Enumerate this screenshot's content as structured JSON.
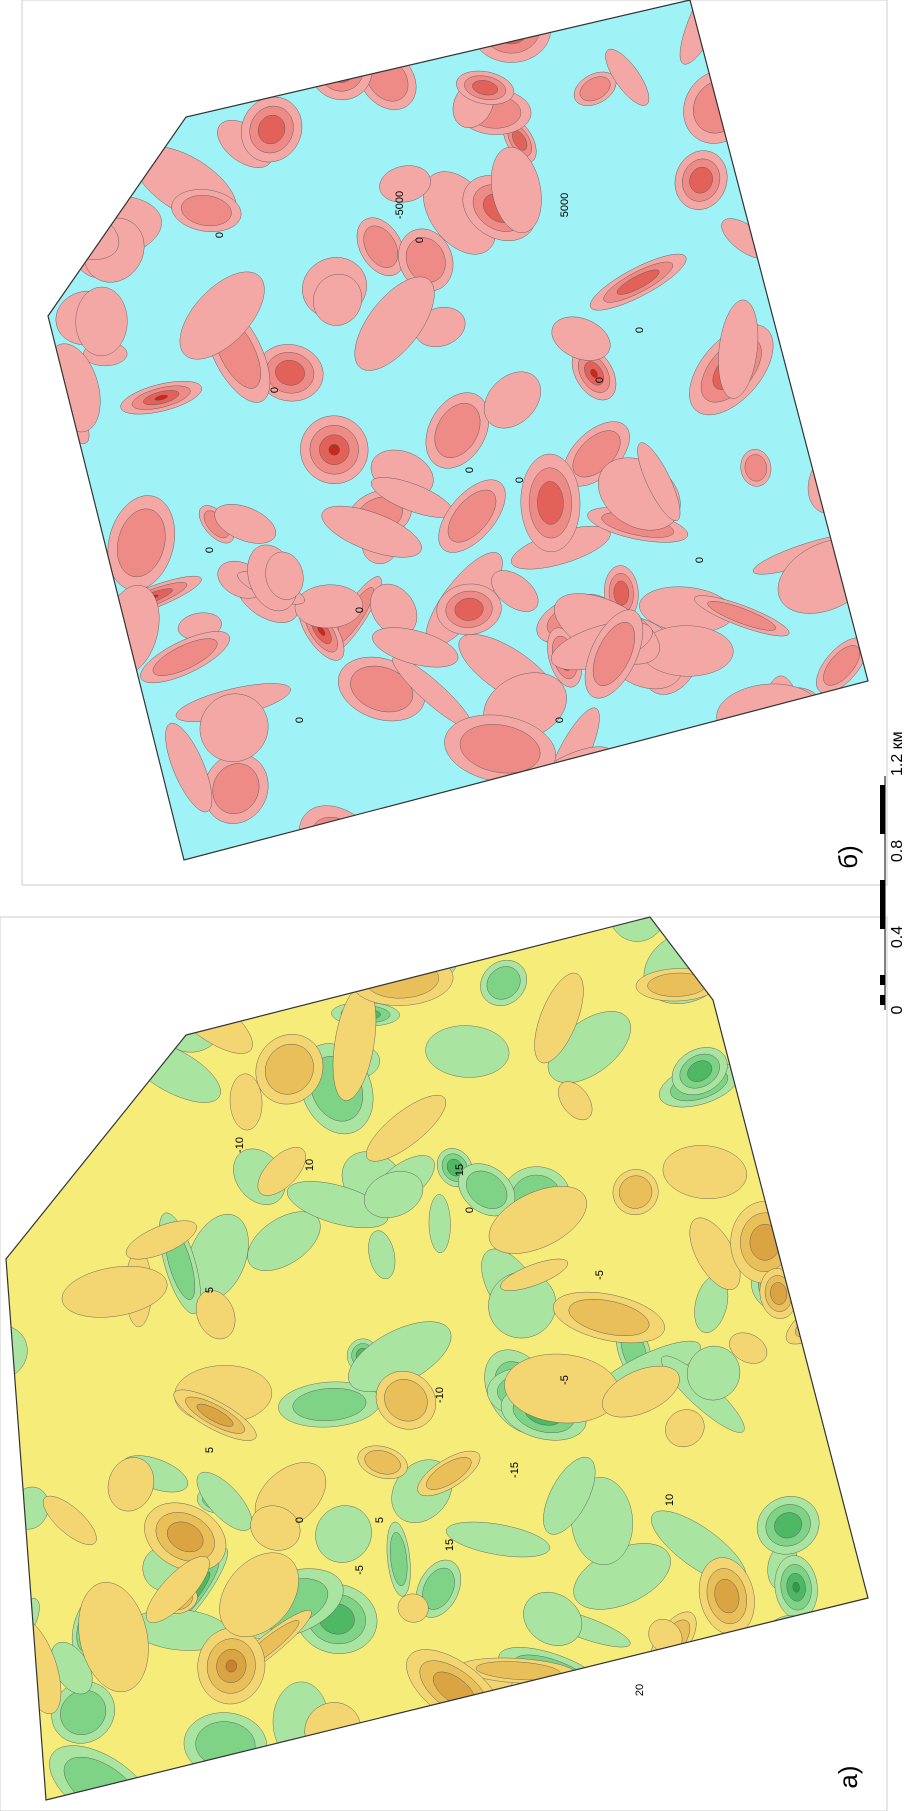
{
  "panel_b": {
    "label": "б)",
    "contour_labels": [
      "0",
      "0",
      "0",
      "0",
      "0",
      "0",
      "-5000",
      "5000",
      "0",
      "0",
      "0",
      "0",
      "0",
      "0"
    ]
  },
  "panel_a": {
    "label": "а)",
    "contour_labels": [
      "5",
      "-5",
      "10",
      "-10",
      "15",
      "-15",
      "20",
      "0",
      "5",
      "-5",
      "10",
      "-10",
      "0",
      "5",
      "15",
      "-5"
    ]
  },
  "scale_bar": {
    "ticks": [
      "0",
      "0.4",
      "0.8",
      "1.2 км"
    ]
  }
}
